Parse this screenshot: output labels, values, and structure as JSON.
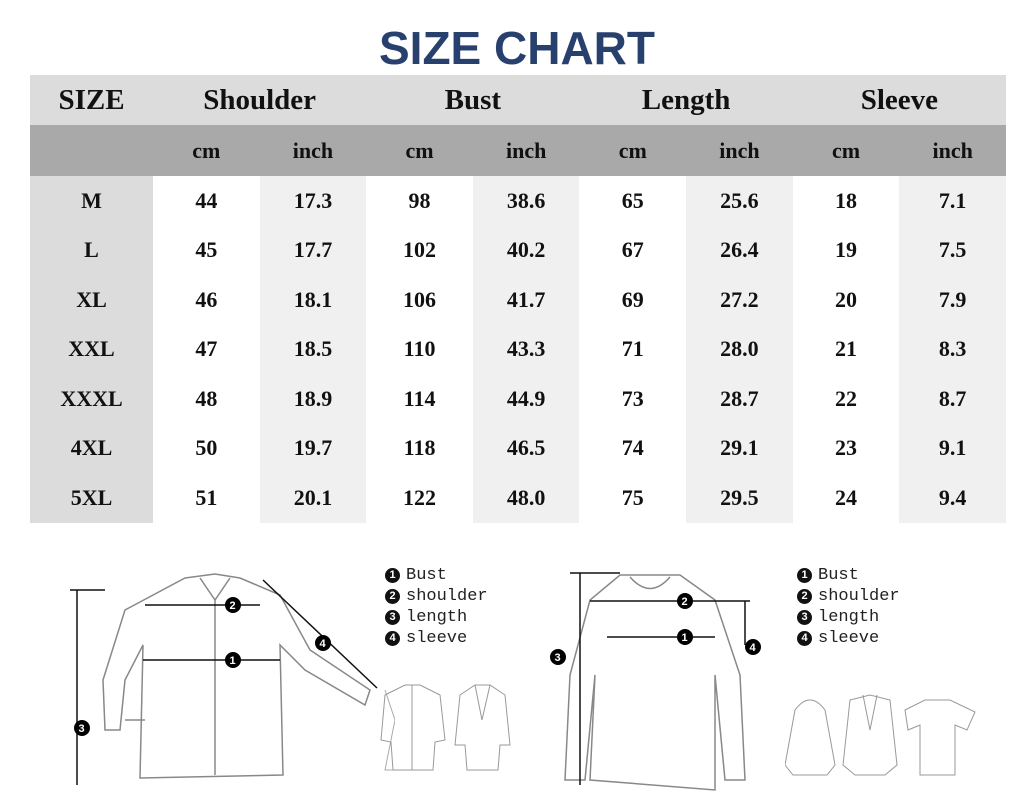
{
  "title": "SIZE CHART",
  "headers": {
    "size": "SIZE",
    "groups": [
      "Shoulder",
      "Bust",
      "Length",
      "Sleeve"
    ],
    "units": [
      "cm",
      "inch"
    ]
  },
  "rows": [
    {
      "size": "M",
      "values": [
        "44",
        "17.3",
        "98",
        "38.6",
        "65",
        "25.6",
        "18",
        "7.1"
      ]
    },
    {
      "size": "L",
      "values": [
        "45",
        "17.7",
        "102",
        "40.2",
        "67",
        "26.4",
        "19",
        "7.5"
      ]
    },
    {
      "size": "XL",
      "values": [
        "46",
        "18.1",
        "106",
        "41.7",
        "69",
        "27.2",
        "20",
        "7.9"
      ]
    },
    {
      "size": "XXL",
      "values": [
        "47",
        "18.5",
        "110",
        "43.3",
        "71",
        "28.0",
        "21",
        "8.3"
      ]
    },
    {
      "size": "XXXL",
      "values": [
        "48",
        "18.9",
        "114",
        "44.9",
        "73",
        "28.7",
        "22",
        "8.7"
      ]
    },
    {
      "size": "4XL",
      "values": [
        "50",
        "19.7",
        "118",
        "46.5",
        "74",
        "29.1",
        "23",
        "9.1"
      ]
    },
    {
      "size": "5XL",
      "values": [
        "51",
        "20.1",
        "122",
        "48.0",
        "75",
        "29.5",
        "24",
        "9.4"
      ]
    }
  ],
  "legend": [
    {
      "num": "1",
      "label": "Bust"
    },
    {
      "num": "2",
      "label": "shoulder"
    },
    {
      "num": "3",
      "label": "length"
    },
    {
      "num": "4",
      "label": "sleeve"
    }
  ],
  "colors": {
    "title": "#27406e",
    "header": "#dcdcdc",
    "subheader": "#a9a9a9",
    "inch_column": "#f0f0f0"
  }
}
